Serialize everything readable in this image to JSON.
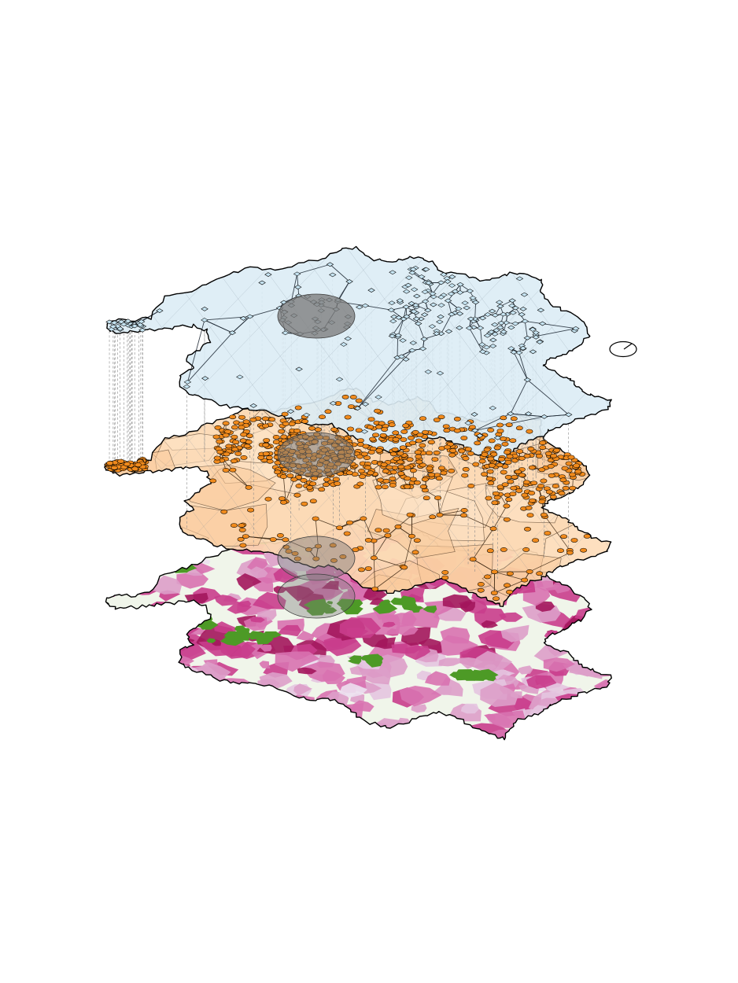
{
  "figure": {
    "layers": [
      {
        "id": "network-layer",
        "fill": "#dcecf5",
        "node_color": "#c6e4f2",
        "node_shape": "diamond"
      },
      {
        "id": "settlement-layer",
        "fill": "#fcd7b0",
        "node_color": "#f08a1c",
        "node_shape": "ellipse"
      },
      {
        "id": "density-layer",
        "fill": "#f0f5ea",
        "palette": [
          "#ece0ef",
          "#e4c5e0",
          "#dd9ec9",
          "#d872b0",
          "#c93d8c",
          "#a3165c"
        ],
        "forest_color": "#4d9a26"
      }
    ],
    "highlight_color": "#7c7c7c",
    "compass_icon": "compass-icon"
  }
}
